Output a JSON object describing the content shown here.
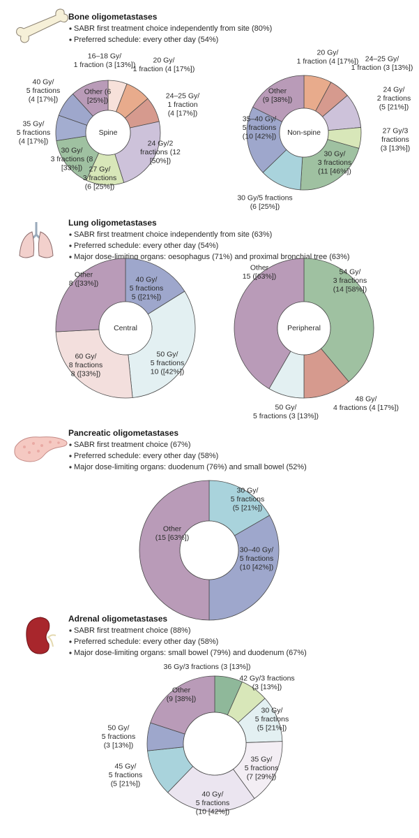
{
  "sections": [
    {
      "title": "Bone oligometastases",
      "notes": [
        "SABR first treatment choice independently from site (80%)",
        "Preferred schedule: every other day (54%)"
      ]
    },
    {
      "title": "Lung oligometastases",
      "notes": [
        "SABR first treatment choice independently from site (63%)",
        "Preferred schedule: every other day (54%)",
        "Major dose-limiting organs: oesophagus (71%) and proximal bronchial tree (63%)"
      ]
    },
    {
      "title": "Pancreatic oligometastases",
      "notes": [
        "SABR first treatment choice (67%)",
        "Preferred schedule: every other day (58%)",
        "Major dose-limiting organs: duodenum (76%) and small bowel (52%)"
      ]
    },
    {
      "title": "Adrenal oligometastases",
      "notes": [
        "SABR first treatment choice (88%)",
        "Preferred schedule: every other day (58%)",
        "Major dose-limiting organs: small bowel (79%) and duodenum (67%)"
      ]
    }
  ],
  "chart_data": [
    {
      "type": "donut",
      "center_label": "Spine",
      "labels": [
        [
          "16–18 Gy/",
          "1 fraction (3 [13%])"
        ],
        [
          "20 Gy/",
          "1 fraction (4 [17%])"
        ],
        [
          "24–25 Gy/",
          "1 fraction",
          "(4 [17%])"
        ],
        [
          "24 Gy/2",
          "fractions (12",
          "[50%])"
        ],
        [
          "27 Gy/",
          "3 fractions",
          "(6 [25%])"
        ],
        [
          "30 Gy/",
          "3 fractions (8",
          "[33%])"
        ],
        [
          "35 Gy/",
          "5 fractions",
          "(4 [17%])"
        ],
        [
          "40 Gy/",
          "5 fractions",
          "(4 [17%])"
        ],
        [
          "Other (6",
          "[25%])"
        ]
      ],
      "values": [
        3,
        4,
        4,
        12,
        6,
        8,
        4,
        4,
        6
      ],
      "colors": [
        "#f7e1da",
        "#e8ab8c",
        "#d69a8e",
        "#cdc2da",
        "#d8e7b9",
        "#9fc1a1",
        "#a3add0",
        "#9ea7cc",
        "#b99bb8"
      ]
    },
    {
      "type": "donut",
      "center_label": "Non-spine",
      "labels": [
        [
          "20 Gy/",
          "1 fraction (4 [17%])"
        ],
        [
          "24–25 Gy/",
          "1 fraction (3 [13%])"
        ],
        [
          "24 Gy/",
          "2 fractions",
          "(5 [21%])"
        ],
        [
          "27 Gy/3",
          "fractions",
          "(3 [13%])"
        ],
        [
          "30 Gy/",
          "3 fractions",
          "(11 [46%])"
        ],
        [
          "30 Gy/5 fractions",
          "(6 [25%])"
        ],
        [
          "35–40 Gy/",
          "5 fractions",
          "(10 [42%])"
        ],
        [
          "Other",
          "(9 [38%])"
        ]
      ],
      "values": [
        4,
        3,
        5,
        3,
        11,
        6,
        10,
        9
      ],
      "colors": [
        "#e8ab8c",
        "#d69a8e",
        "#cdc2da",
        "#d8e7b9",
        "#9fc1a1",
        "#a9d3dc",
        "#9ea7cc",
        "#b99bb8"
      ]
    },
    {
      "type": "donut",
      "center_label": "Central",
      "labels": [
        [
          "40 Gy/",
          "5 fractions",
          "5 ([21%])"
        ],
        [
          "50 Gy/",
          "5 fractions",
          "10 ([42%])"
        ],
        [
          "60 Gy/",
          "8 fractions",
          "8 ([33%])"
        ],
        [
          "Other",
          "8 ([33%])"
        ]
      ],
      "values": [
        5,
        10,
        8,
        8
      ],
      "colors": [
        "#9ea7cc",
        "#e3f0f2",
        "#f3dfdd",
        "#b99bb8"
      ]
    },
    {
      "type": "donut",
      "center_label": "Peripheral",
      "labels": [
        [
          "54 Gy/",
          "3 fractions",
          "(14 [58%])"
        ],
        [
          "48 Gy/",
          "4 fractions (4 [17%])"
        ],
        [
          "50 Gy/",
          "5 fractions (3 [13%])"
        ],
        [
          "Other",
          "15 ([63%])"
        ]
      ],
      "values": [
        14,
        4,
        3,
        15
      ],
      "colors": [
        "#9fc1a1",
        "#d69a8e",
        "#e3f0f2",
        "#b99bb8"
      ]
    },
    {
      "type": "donut",
      "center_label": "",
      "labels": [
        [
          "30 Gy/",
          "5 fractions",
          "(5 [21%])"
        ],
        [
          "30–40 Gy/",
          "5 fractions",
          "(10 [42%])"
        ],
        [
          "Other",
          "(15 [63%])"
        ]
      ],
      "values": [
        5,
        10,
        15
      ],
      "colors": [
        "#a9d3dc",
        "#9ea7cc",
        "#b99bb8"
      ]
    },
    {
      "type": "donut",
      "center_label": "",
      "labels": [
        [
          "36 Gy/3 fractions (3 [13%])"
        ],
        [
          "42 Gy/3 fractions",
          "(3 [13%])"
        ],
        [
          "30 Gy/",
          "5 fractions",
          "(5 [21%])"
        ],
        [
          "35 Gy/",
          "5 fractions",
          "(7 [29%])"
        ],
        [
          "40 Gy/",
          "5 fractions",
          "(10 [42%])"
        ],
        [
          "45 Gy/",
          "5 fractions",
          "(5 [21%])"
        ],
        [
          "50 Gy/",
          "5 fractions",
          "(3 [13%])"
        ],
        [
          "Other",
          "(9 [38%])"
        ]
      ],
      "values": [
        3,
        3,
        5,
        7,
        10,
        5,
        3,
        9
      ],
      "colors": [
        "#8fb89a",
        "#d8e7b9",
        "#e3f0f2",
        "#f3eef4",
        "#ebe5f0",
        "#a9d3dc",
        "#9ea7cc",
        "#b99bb8"
      ]
    }
  ]
}
